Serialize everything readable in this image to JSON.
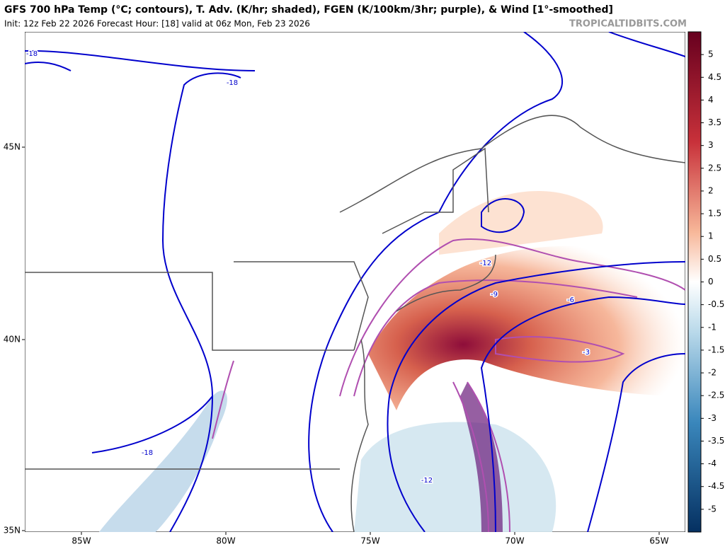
{
  "header": {
    "title": "GFS 700 hPa Temp (°C; contours), T. Adv. (K/hr; shaded), FGEN (K/100km/3hr; purple), & Wind [1°-smoothed]",
    "subtitle": "Init: 12z Feb 22 2026   Forecast Hour: [18]   valid at 06z Mon, Feb 23 2026",
    "credit": "TROPICALTIDBITS.COM"
  },
  "map": {
    "lon_labels": [
      "85W",
      "80W",
      "75W",
      "70W",
      "65W"
    ],
    "lat_labels": [
      "45N",
      "40N",
      "35N"
    ],
    "contour_labels": [
      "-18",
      "-18",
      "-18",
      "-12",
      "-9",
      "-6",
      "-3",
      "-12"
    ]
  },
  "colorbar": {
    "ticks": [
      5,
      4.5,
      4,
      3.5,
      3,
      2.5,
      2,
      1.5,
      1,
      0.5,
      0,
      -0.5,
      -1,
      -1.5,
      -2,
      -2.5,
      -3,
      -3.5,
      -4,
      -4.5,
      -5
    ]
  }
}
